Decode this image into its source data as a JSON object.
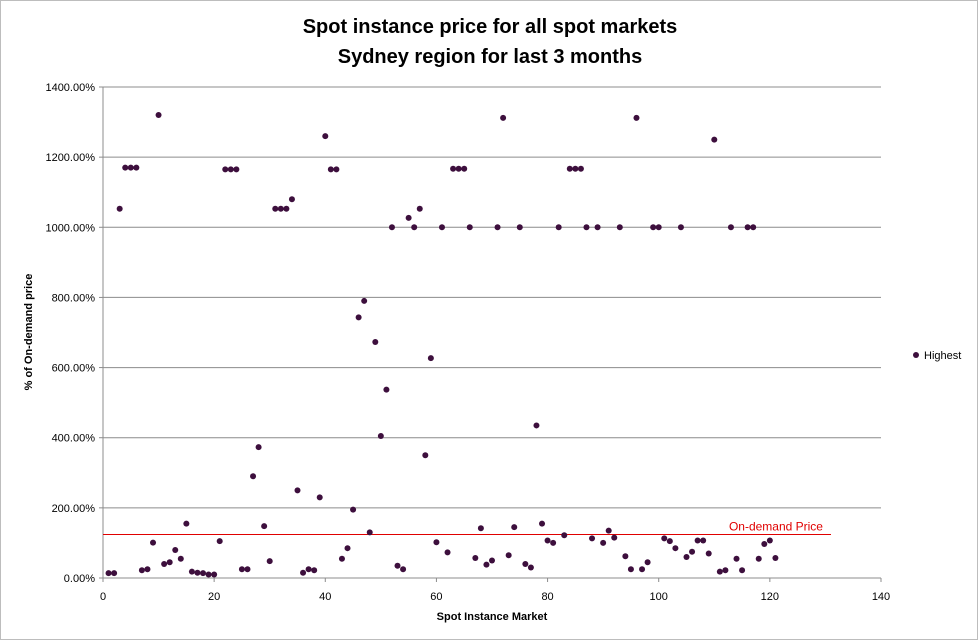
{
  "chart_data": {
    "type": "scatter",
    "title_line1": "Spot instance price for all spot markets",
    "title_line2": "Sydney region for last 3 months",
    "xlabel": "Spot Instance  Market",
    "ylabel": "% of On-demand  price",
    "xlim": [
      0,
      140
    ],
    "ylim": [
      0,
      1400
    ],
    "x_ticks": [
      "0",
      "20",
      "40",
      "60",
      "80",
      "100",
      "120",
      "140"
    ],
    "y_ticks": [
      "0.00%",
      "200.00%",
      "400.00%",
      "600.00%",
      "800.00%",
      "1000.00%",
      "1200.00%",
      "1400.00%"
    ],
    "grid": "horizontal",
    "legend_position": "right",
    "series": [
      {
        "name": "Highest",
        "color": "#3d0f3d",
        "x": [
          1,
          2,
          3,
          4,
          5,
          6,
          7,
          8,
          9,
          10,
          11,
          12,
          13,
          14,
          15,
          16,
          17,
          18,
          19,
          20,
          21,
          22,
          23,
          24,
          25,
          26,
          27,
          28,
          29,
          30,
          31,
          32,
          33,
          34,
          35,
          36,
          37,
          38,
          39,
          40,
          41,
          42,
          43,
          44,
          45,
          46,
          47,
          48,
          49,
          50,
          51,
          52,
          53,
          54,
          55,
          56,
          57,
          58,
          59,
          60,
          61,
          62,
          63,
          64,
          65,
          66,
          67,
          68,
          69,
          70,
          71,
          72,
          73,
          74,
          75,
          76,
          77,
          78,
          79,
          80,
          81,
          82,
          83,
          84,
          85,
          86,
          87,
          88,
          89,
          90,
          91,
          92,
          93,
          94,
          95,
          96,
          97,
          98,
          99,
          100,
          101,
          102,
          103,
          104,
          105,
          106,
          107,
          108,
          109,
          110,
          111,
          112,
          113,
          114,
          115,
          116,
          117,
          118,
          119,
          120,
          121
        ],
        "y": [
          14,
          14,
          1053,
          1170,
          1170,
          1170,
          22,
          25,
          101,
          1320,
          40,
          45,
          80,
          55,
          155,
          18,
          15,
          14,
          10,
          10,
          105,
          1165,
          1165,
          1165,
          25,
          25,
          290,
          373,
          148,
          48,
          1053,
          1053,
          1053,
          1080,
          250,
          15,
          25,
          22,
          230,
          1260,
          1165,
          1165,
          55,
          85,
          195,
          743,
          790,
          130,
          673,
          405,
          537,
          1000,
          35,
          25,
          1027,
          1000,
          1053,
          350,
          627,
          102,
          1000,
          73,
          1167,
          1167,
          1167,
          1000,
          57,
          142,
          38,
          50,
          1000,
          1312,
          65,
          145,
          1000,
          40,
          30,
          435,
          155,
          107,
          100,
          1000,
          122,
          1167,
          1167,
          1167,
          1000,
          113,
          1000,
          100,
          135,
          115,
          1000,
          62,
          25,
          1312,
          25,
          45,
          1000,
          1000,
          113,
          105,
          85,
          1000,
          60,
          75,
          107,
          107,
          70,
          1250,
          18,
          22,
          1000,
          55,
          22,
          1000,
          1000,
          55,
          97,
          107,
          57
        ]
      }
    ],
    "reference_line": {
      "label": "On-demand Price",
      "value": 124,
      "x_range": [
        0,
        131
      ],
      "color": "#e00000"
    }
  }
}
